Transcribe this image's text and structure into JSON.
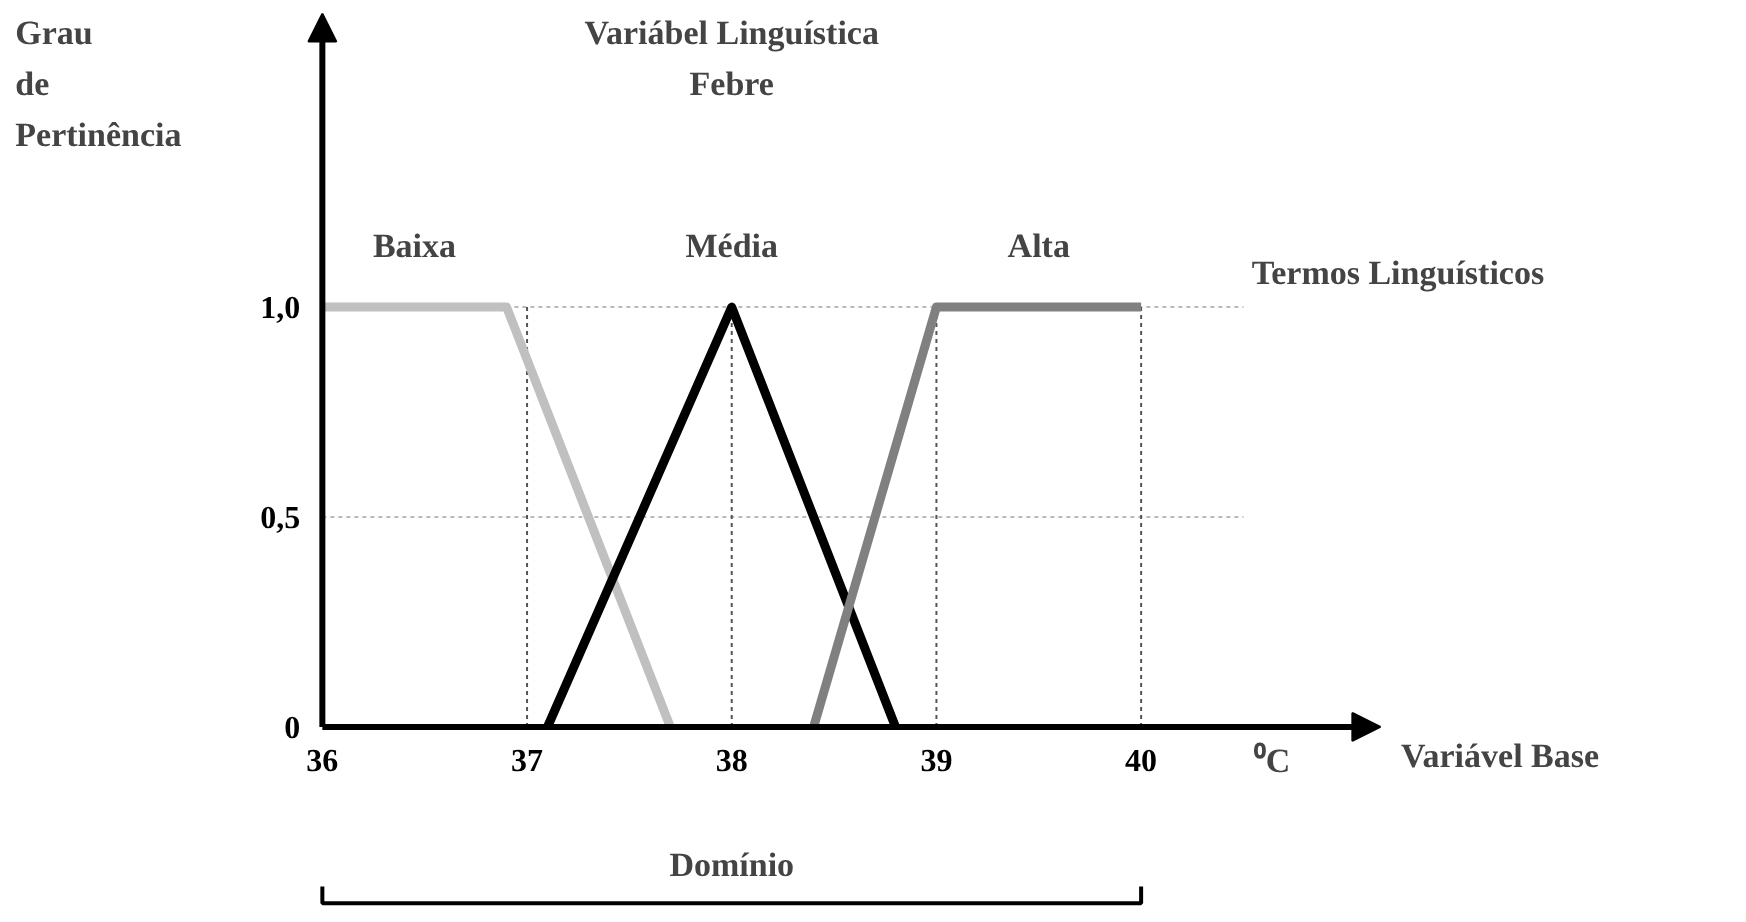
{
  "chart_data": {
    "type": "line",
    "title": "Variábel Linguística\nFebre",
    "ylabel": "Grau\nde\nPertinência",
    "xlabel": "Variável Base",
    "annotations": [
      "Termos Linguísticos",
      "⁰C",
      "Domínio"
    ],
    "series": [
      {
        "name": "Baixa",
        "color": "#c0c0c0",
        "x": [
          36,
          36.9,
          37.7
        ],
        "values": [
          1,
          1,
          0
        ]
      },
      {
        "name": "Média",
        "color": "#000000",
        "x": [
          37.1,
          38,
          38.8
        ],
        "values": [
          0,
          1,
          0
        ]
      },
      {
        "name": "Alta",
        "color": "#808080",
        "x": [
          38.4,
          39,
          40
        ],
        "values": [
          0,
          1,
          1
        ]
      }
    ],
    "xlim": [
      34.43,
      42.96
    ],
    "ylim": [
      -0.467,
      1.729
    ],
    "xticks": [
      36,
      37,
      38,
      39,
      40
    ],
    "yticks": [
      0,
      {
        "value": 0.5,
        "label": "0,5"
      },
      {
        "value": 1,
        "label": "1,0"
      }
    ],
    "ref_lines": [
      {
        "axis": "y",
        "value": 0.5,
        "color": "#bbbbbb",
        "line_style": "dashed"
      },
      {
        "axis": "y",
        "value": 1,
        "color": "#bbbbbb",
        "line_style": "dashed"
      },
      {
        "axis": "x",
        "value": 37,
        "color": "#555555",
        "line_style": "dashed"
      },
      {
        "axis": "x",
        "value": 38,
        "color": "#555555",
        "line_style": "dashed"
      },
      {
        "axis": "x",
        "value": 39,
        "color": "#555555",
        "line_style": "dashed"
      },
      {
        "axis": "x",
        "value": 40,
        "color": "#555555",
        "line_style": "dashed"
      }
    ],
    "line_style": "solid",
    "marker": "none"
  }
}
